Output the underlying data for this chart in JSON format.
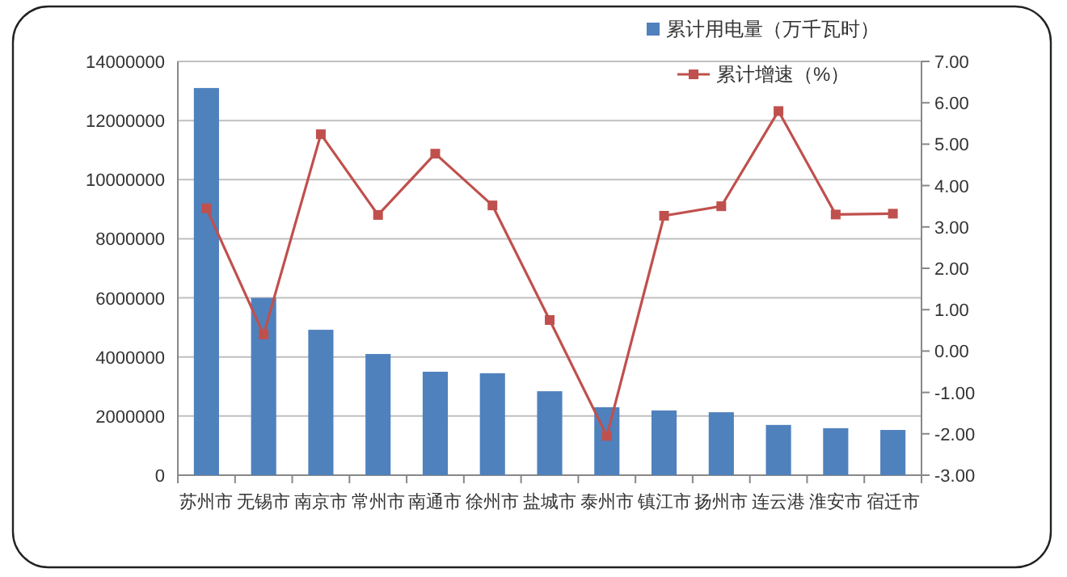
{
  "chart_data": {
    "type": "bar",
    "categories": [
      "苏州市",
      "无锡市",
      "南京市",
      "常州市",
      "南通市",
      "徐州市",
      "盐城市",
      "泰州市",
      "镇江市",
      "扬州市",
      "连云港",
      "淮安市",
      "宿迁市"
    ],
    "series": [
      {
        "name": "累计用电量（万千瓦时）",
        "color": "#4f81bd",
        "values": [
          13100000,
          6000000,
          4920000,
          4100000,
          3500000,
          3450000,
          2840000,
          2300000,
          2190000,
          2130000,
          1700000,
          1590000,
          1530000
        ]
      },
      {
        "name": "累计增速（%）",
        "type": "line",
        "axis": "y2",
        "color": "#c0504d",
        "marker": "square",
        "values": [
          3.45,
          0.4,
          5.24,
          3.29,
          4.77,
          3.52,
          0.75,
          -2.05,
          3.27,
          3.5,
          5.8,
          3.3,
          3.32
        ]
      }
    ],
    "ylim": [
      0,
      14000000
    ],
    "yticks": [
      0,
      2000000,
      4000000,
      6000000,
      8000000,
      10000000,
      12000000,
      14000000
    ],
    "y2lim": [
      -3,
      7
    ],
    "y2ticks": [
      {
        "value": -3,
        "label": "-3.00"
      },
      {
        "value": -2,
        "label": "-2.00"
      },
      {
        "value": -1,
        "label": "-1.00"
      },
      {
        "value": 0,
        "label": "0.00"
      },
      {
        "value": 1,
        "label": "1.00"
      },
      {
        "value": 2,
        "label": "2.00"
      },
      {
        "value": 3,
        "label": "3.00"
      },
      {
        "value": 4,
        "label": "4.00"
      },
      {
        "value": 5,
        "label": "5.00"
      },
      {
        "value": 6,
        "label": "6.00"
      },
      {
        "value": 7,
        "label": "7.00"
      }
    ],
    "grid": "y",
    "legend": "top right"
  }
}
